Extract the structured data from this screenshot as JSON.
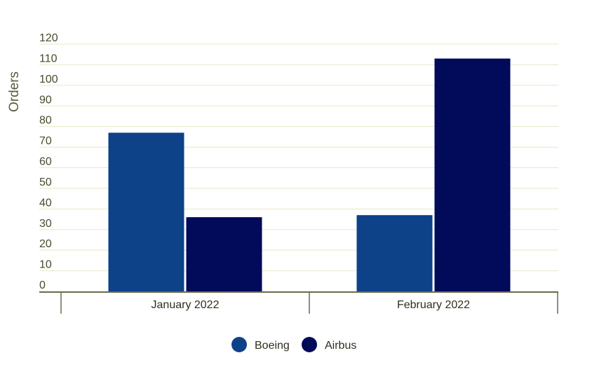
{
  "chart_data": {
    "type": "bar",
    "categories": [
      "January 2022",
      "February 2022"
    ],
    "series": [
      {
        "name": "Boeing",
        "values": [
          77,
          37
        ],
        "color": "#0d4289"
      },
      {
        "name": "Airbus",
        "values": [
          36,
          113
        ],
        "color": "#020a5a"
      }
    ],
    "title": "",
    "xlabel": "",
    "ylabel": "Orders",
    "ylim": [
      0,
      120
    ],
    "yticks": [
      0,
      10,
      20,
      30,
      40,
      50,
      60,
      70,
      80,
      90,
      100,
      110,
      120
    ],
    "grid": true,
    "legend_position": "bottom-center",
    "colors": {
      "grid": "#e6e8c8",
      "axis": "#6b6b4a"
    }
  }
}
